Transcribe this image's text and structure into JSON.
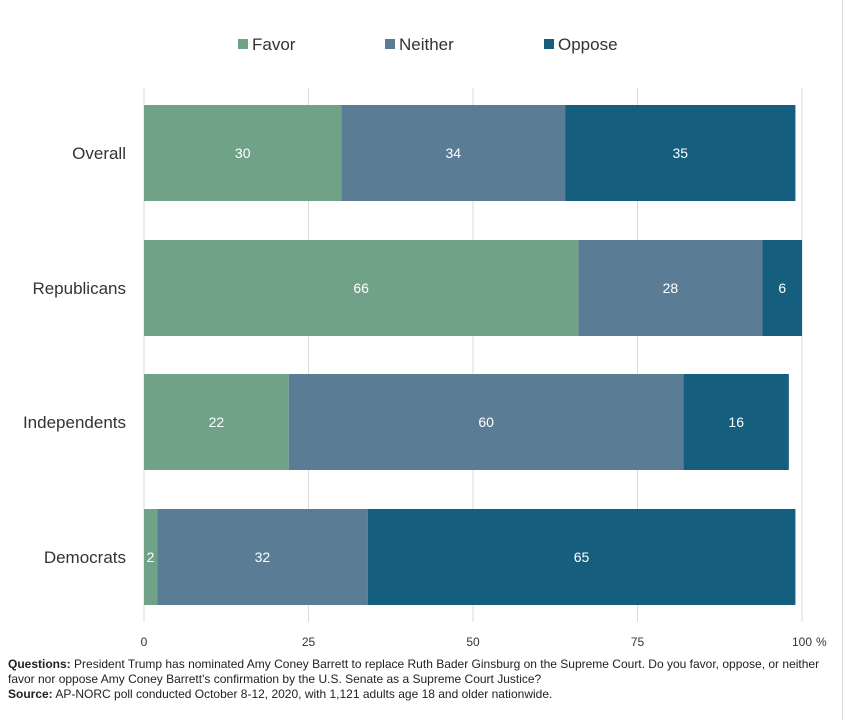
{
  "chart_data": {
    "type": "bar",
    "orientation": "horizontal",
    "stacked": true,
    "categories": [
      "Overall",
      "Republicans",
      "Independents",
      "Democrats"
    ],
    "series": [
      {
        "name": "Favor",
        "values": [
          30,
          66,
          22,
          2
        ],
        "color": "#70a288"
      },
      {
        "name": "Neither",
        "values": [
          34,
          28,
          60,
          32
        ],
        "color": "#5a7d95"
      },
      {
        "name": "Oppose",
        "values": [
          35,
          6,
          16,
          65
        ],
        "color": "#165e7e"
      }
    ],
    "xlim": [
      0,
      100
    ],
    "xticks": [
      "0",
      "25",
      "50",
      "75",
      "100"
    ],
    "x_unit": "%",
    "legend_position": "top",
    "grid": true
  },
  "notes": {
    "questions_label": "Questions:",
    "questions_text": "President Trump has nominated Amy Coney Barrett to replace Ruth Bader Ginsburg on the Supreme Court. Do you favor, oppose, or neither favor nor oppose Amy Coney Barrett's confirmation by the U.S. Senate as a Supreme Court Justice?",
    "source_label": "Source:",
    "source_text": "AP-NORC poll conducted October 8-12, 2020, with 1,121 adults age 18 and older nationwide."
  }
}
